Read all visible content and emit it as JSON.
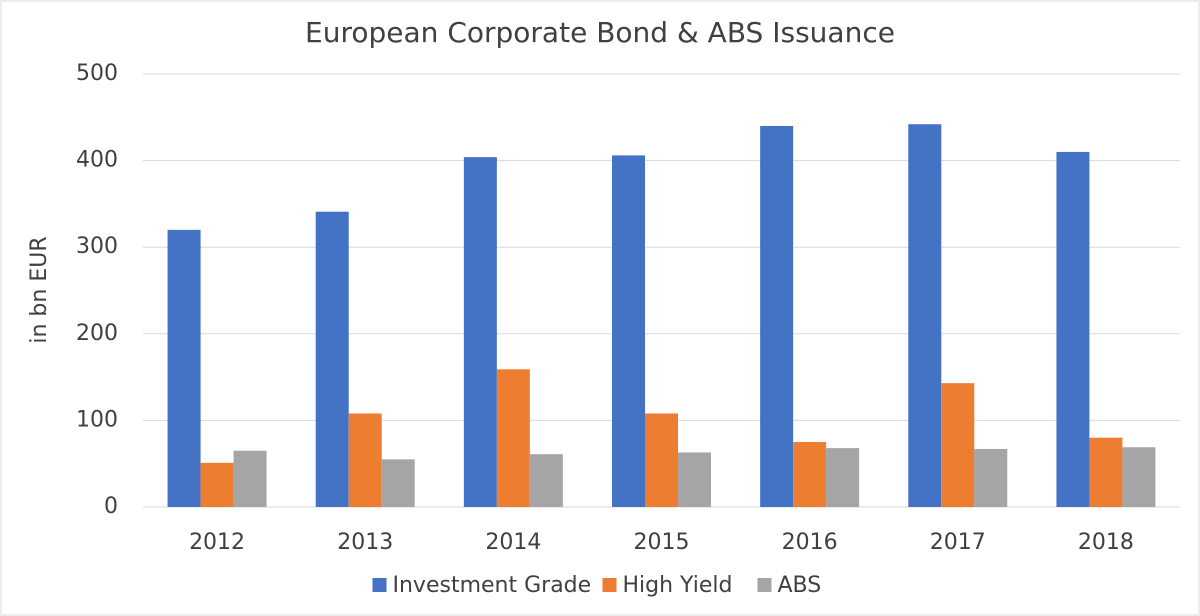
{
  "chart_data": {
    "type": "bar",
    "title": "European Corporate Bond & ABS Issuance",
    "y_label": "in bn EUR",
    "categories": [
      "2012",
      "2013",
      "2014",
      "2015",
      "2016",
      "2017",
      "2018"
    ],
    "series": [
      {
        "name": "Investment Grade",
        "color": "#4472c4",
        "values": [
          320,
          341,
          404,
          406,
          440,
          442,
          410
        ]
      },
      {
        "name": "High Yield",
        "color": "#ed7d31",
        "values": [
          51,
          108,
          159,
          108,
          75,
          143,
          80
        ]
      },
      {
        "name": "ABS",
        "color": "#a5a5a5",
        "values": [
          65,
          55,
          61,
          63,
          68,
          67,
          69
        ]
      }
    ],
    "ylim": [
      0,
      500
    ],
    "yticks": [
      0,
      100,
      200,
      300,
      400,
      500
    ],
    "grid": true,
    "legend": "bottom"
  }
}
